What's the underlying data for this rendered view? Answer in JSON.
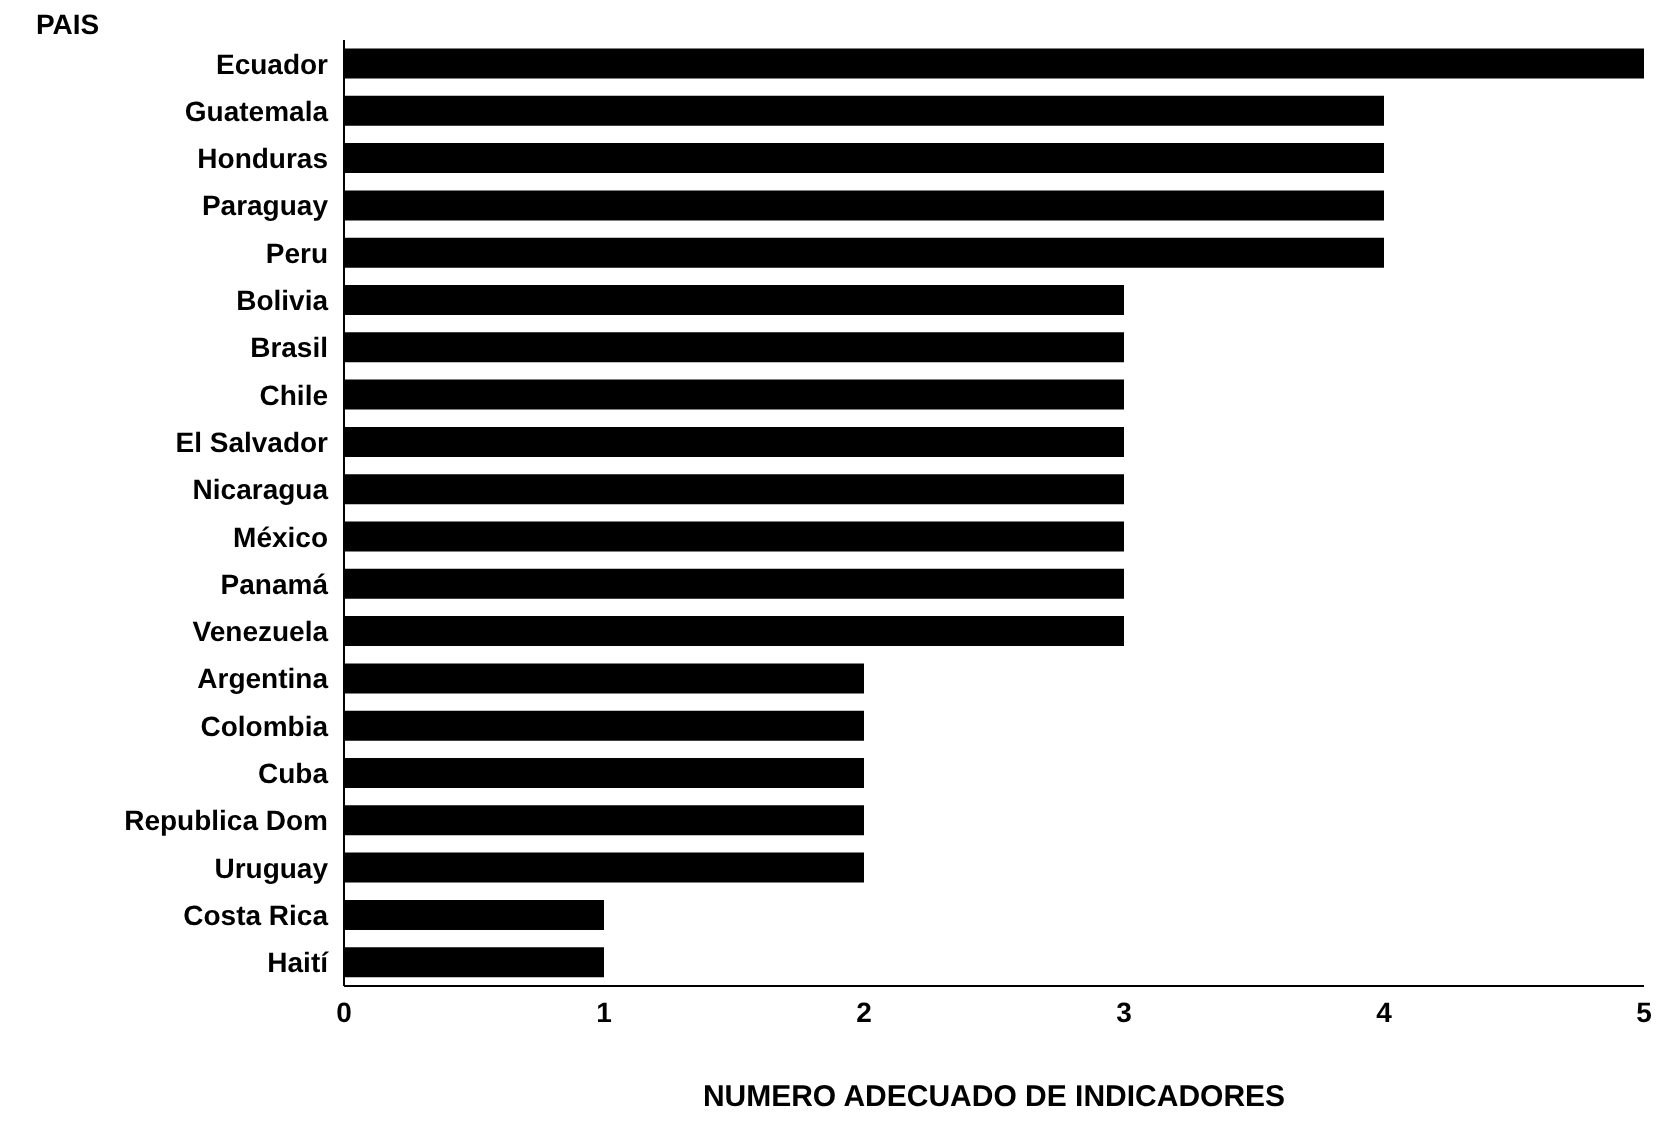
{
  "chart_data": {
    "type": "bar",
    "orientation": "horizontal",
    "ylabel": "PAIS",
    "xlabel": "NUMERO ADECUADO DE INDICADORES",
    "categories": [
      "Ecuador",
      "Guatemala",
      "Honduras",
      "Paraguay",
      "Peru",
      "Bolivia",
      "Brasil",
      "Chile",
      "El Salvador",
      "Nicaragua",
      "México",
      "Panamá",
      "Venezuela",
      "Argentina",
      "Colombia",
      "Cuba",
      "Republica Dom",
      "Uruguay",
      "Costa Rica",
      "Haití"
    ],
    "values": [
      5,
      4,
      4,
      4,
      4,
      3,
      3,
      3,
      3,
      3,
      3,
      3,
      3,
      2,
      2,
      2,
      2,
      2,
      1,
      1
    ],
    "color": "#000000",
    "xlim": [
      0,
      5
    ],
    "xticks": [
      0,
      1,
      2,
      3,
      4,
      5
    ],
    "grid": false
  }
}
